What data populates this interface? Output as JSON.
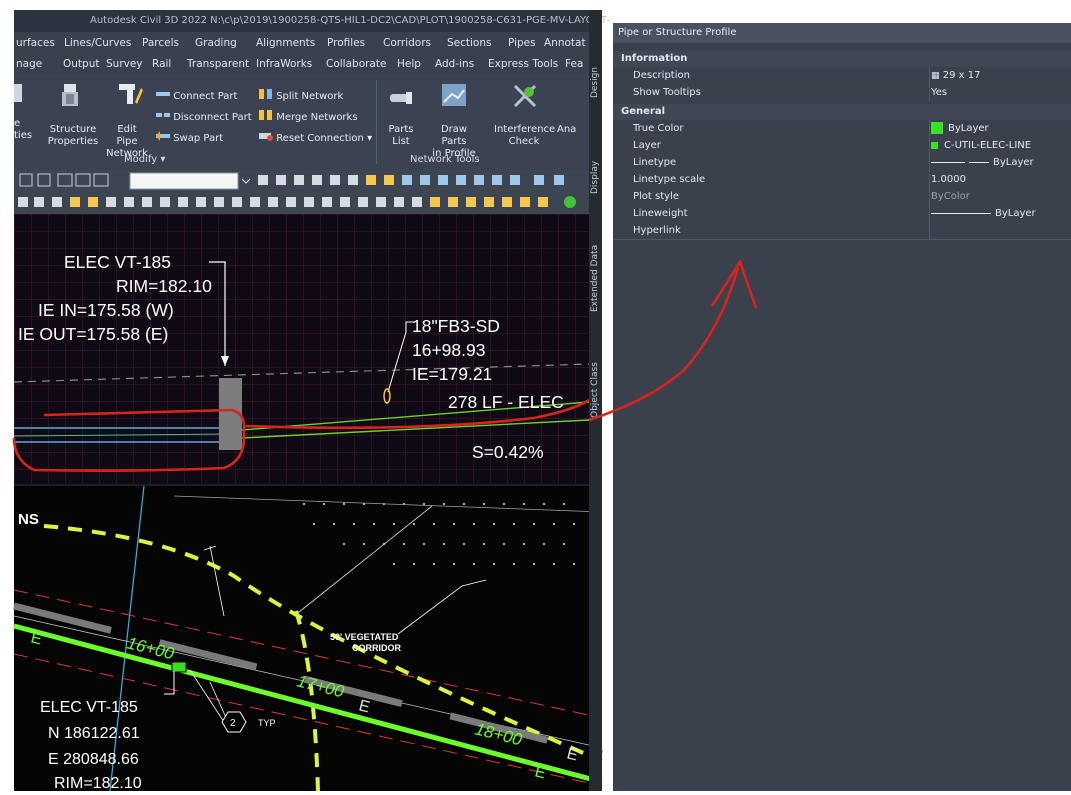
{
  "window": {
    "title": "Autodesk Civil 3D 2022   N:\\c\\p\\2019\\1900258-QTS-HIL1-DC2\\CAD\\PLOT\\1900258-C631-PGE-MV-LAYOUT-"
  },
  "menu_row1": [
    "urfaces",
    "Lines/Curves",
    "Parcels",
    "Grading",
    "Alignments",
    "Profiles",
    "Corridors",
    "Sections",
    "Pipes",
    "Annotat"
  ],
  "menu_row2": [
    "nage",
    "Output",
    "Survey",
    "Rail",
    "Transparent",
    "InfraWorks",
    "Collaborate",
    "Help",
    "Add-ins",
    "Express Tools",
    "Fea"
  ],
  "ribbon": {
    "left_cut_label1": "e",
    "left_cut_label2": "ties",
    "structure_properties": [
      "Structure",
      "Properties"
    ],
    "edit_pipe_network": [
      "Edit Pipe",
      "Network"
    ],
    "connect_part": "Connect Part",
    "disconnect_part": "Disconnect Part",
    "swap_part": "Swap Part",
    "split_network": "Split Network",
    "merge_networks": "Merge Networks",
    "reset_connection": "Reset Connection",
    "modify_panel": "Modify",
    "parts_list": "Parts List",
    "draw_parts_in_profile": [
      "Draw Parts",
      "in Profile"
    ],
    "interference_check": [
      "Interference",
      "Check"
    ],
    "ana_cut": "Ana",
    "network_tools_panel": "Network Tools"
  },
  "side_tabs": [
    "Design",
    "Display",
    "Extended Data",
    "Object Class"
  ],
  "profile_view": {
    "structure_label": [
      "ELEC VT-185",
      "RIM=182.10",
      "IE IN=175.58 (W)",
      "IE OUT=175.58 (E)"
    ],
    "pipe_label": [
      "18\"FB3-SD",
      "16+98.93",
      "IE=179.21"
    ],
    "length_label": "278 LF - ELEC",
    "slope_label": "S=0.42%"
  },
  "plan_view": {
    "corner_text": "NS",
    "station_labels": [
      "16+00",
      "17+00",
      "18+00"
    ],
    "e_labels": [
      "E",
      "E",
      "E",
      "E"
    ],
    "corridor_label": [
      "50' VEGETATED",
      "CORRIDOR"
    ],
    "callout_number": "2",
    "callout_typ": "TYP",
    "structure_label": [
      "ELEC VT-185",
      "N 186122.61",
      "E 280848.66",
      "RIM=182.10"
    ]
  },
  "properties": {
    "header": "Pipe or Structure Profile",
    "sections": [
      {
        "title": "Information",
        "rows": [
          {
            "name": "Description",
            "value": "29 x 17",
            "icon": "table-icon"
          },
          {
            "name": "Show Tooltips",
            "value": "Yes"
          }
        ]
      },
      {
        "title": "General",
        "rows": [
          {
            "name": "True Color",
            "value": "ByLayer",
            "swatch": "#3adf2a"
          },
          {
            "name": "Layer",
            "value": "C-UTIL-ELEC-LINE",
            "swatch": "#3adf2a"
          },
          {
            "name": "Linetype",
            "value": "ByLayer"
          },
          {
            "name": "Linetype scale",
            "value": "1.0000"
          },
          {
            "name": "Plot style",
            "value": "ByColor",
            "muted": true
          },
          {
            "name": "Lineweight",
            "value": "ByLayer"
          },
          {
            "name": "Hyperlink",
            "value": ""
          }
        ]
      }
    ]
  },
  "colors": {
    "annotation_red": "#d8241c",
    "pipe_green": "#6cff2a",
    "yellow_green": "#dcf53c",
    "panel_bg": "#3a404c"
  }
}
